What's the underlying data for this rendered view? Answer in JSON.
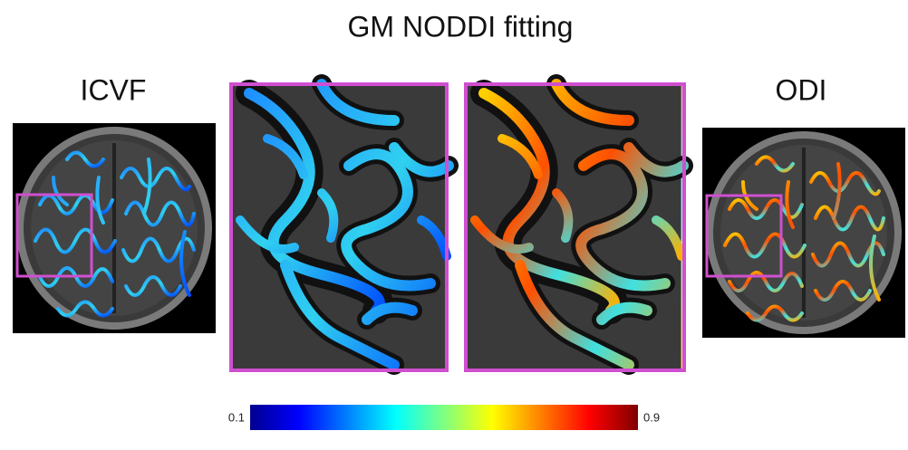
{
  "title": "GM NODDI fitting",
  "panels": {
    "left": "ICVF",
    "right": "ODI"
  },
  "colorbar": {
    "min": 0.1,
    "max": 0.9
  }
}
